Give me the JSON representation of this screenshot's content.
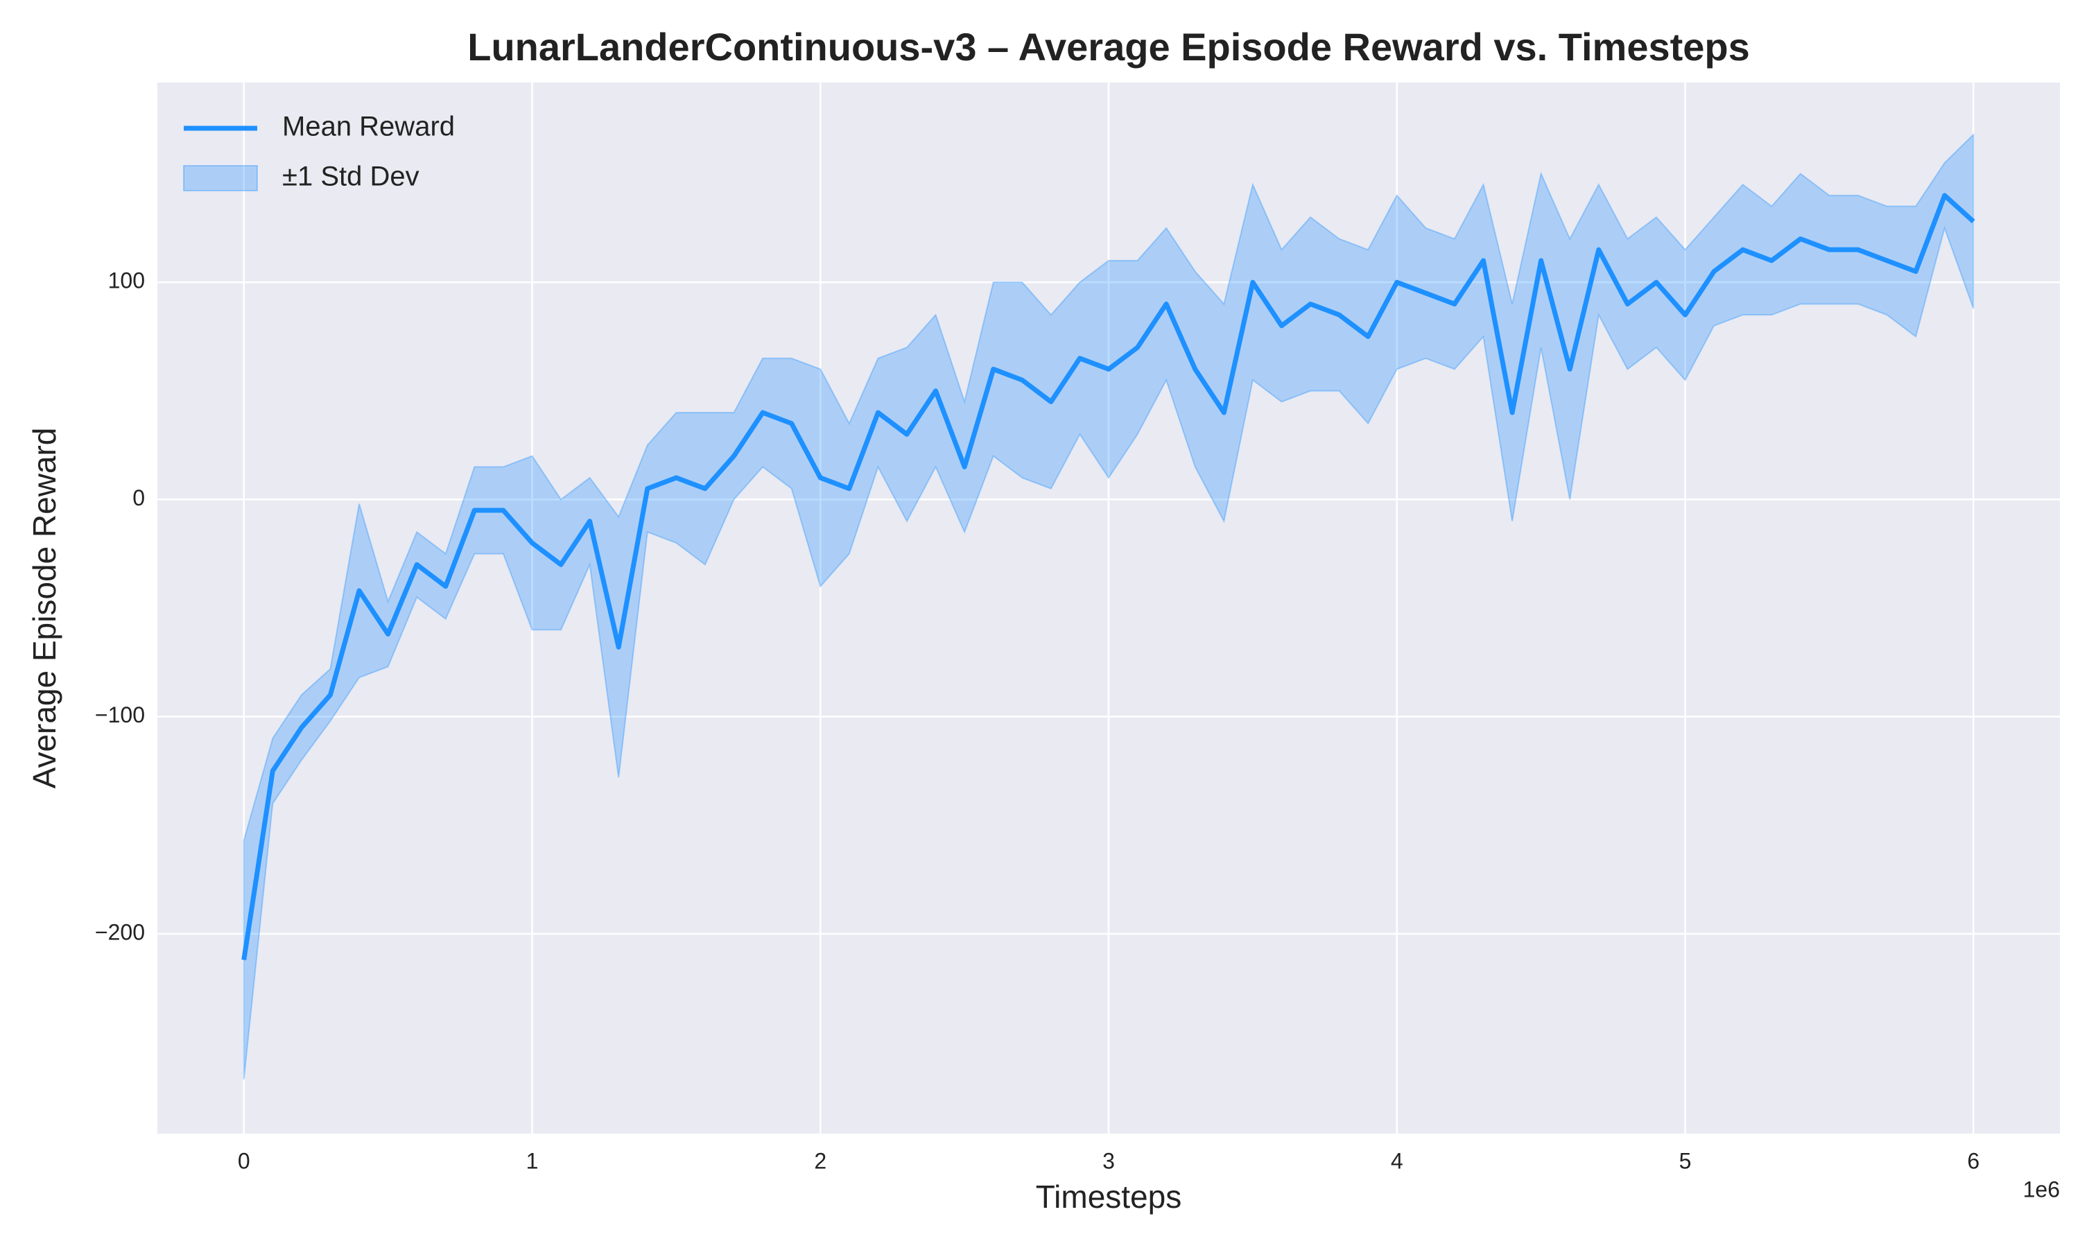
{
  "chart_data": {
    "type": "line",
    "title": "LunarLanderContinuous-v3 – Average Episode Reward vs. Timesteps",
    "x_label": "Timesteps",
    "y_label": "Average Episode Reward",
    "x_offset_label": "1e6",
    "x": [
      0,
      0.1,
      0.2,
      0.3,
      0.4,
      0.5,
      0.6,
      0.7,
      0.8,
      0.9,
      1.0,
      1.1,
      1.2,
      1.3,
      1.4,
      1.5,
      1.6,
      1.7,
      1.8,
      1.9,
      2.0,
      2.1,
      2.2,
      2.3,
      2.4,
      2.5,
      2.6,
      2.7,
      2.8,
      2.9,
      3.0,
      3.1,
      3.2,
      3.3,
      3.4,
      3.5,
      3.6,
      3.7,
      3.8,
      3.9,
      4.0,
      4.1,
      4.2,
      4.3,
      4.4,
      4.5,
      4.6,
      4.7,
      4.8,
      4.9,
      5.0,
      5.1,
      5.2,
      5.3,
      5.4,
      5.5,
      5.6,
      5.7,
      5.8,
      5.9,
      6.0
    ],
    "series": [
      {
        "name": "Mean Reward",
        "color": "#1e90ff",
        "values": [
          -212,
          -125,
          -105,
          -90,
          -42,
          -62,
          -30,
          -40,
          -5,
          -5,
          -20,
          -30,
          -10,
          -68,
          5,
          10,
          5,
          20,
          40,
          35,
          10,
          5,
          40,
          30,
          50,
          15,
          60,
          55,
          45,
          65,
          60,
          70,
          90,
          60,
          40,
          100,
          80,
          90,
          85,
          75,
          100,
          95,
          90,
          110,
          40,
          110,
          60,
          115,
          90,
          100,
          85,
          105,
          115,
          110,
          120,
          115,
          115,
          110,
          105,
          140,
          128
        ]
      },
      {
        "name": "±1 Std Dev",
        "color": "#1e90ff",
        "lower": [
          -267,
          -140,
          -120,
          -102,
          -82,
          -77,
          -45,
          -55,
          -25,
          -25,
          -60,
          -60,
          -30,
          -128,
          -15,
          -20,
          -30,
          0,
          15,
          5,
          -40,
          -25,
          15,
          -10,
          15,
          -15,
          20,
          10,
          5,
          30,
          10,
          30,
          55,
          15,
          -10,
          55,
          45,
          50,
          50,
          35,
          60,
          65,
          60,
          75,
          -10,
          70,
          0,
          85,
          60,
          70,
          55,
          80,
          85,
          85,
          90,
          90,
          90,
          85,
          75,
          125,
          88
        ],
        "upper": [
          -157,
          -110,
          -90,
          -78,
          -2,
          -47,
          -15,
          -25,
          15,
          15,
          20,
          0,
          10,
          -8,
          25,
          40,
          40,
          40,
          65,
          65,
          60,
          35,
          65,
          70,
          85,
          45,
          100,
          100,
          85,
          100,
          110,
          110,
          125,
          105,
          90,
          145,
          115,
          130,
          120,
          115,
          140,
          125,
          120,
          145,
          90,
          150,
          120,
          145,
          120,
          130,
          115,
          130,
          145,
          135,
          150,
          140,
          140,
          135,
          135,
          155,
          168
        ]
      }
    ],
    "xlim": [
      -0.3,
      6.3
    ],
    "ylim": [
      -292,
      192
    ],
    "xticks": [
      0,
      1,
      2,
      3,
      4,
      5,
      6
    ],
    "yticks": [
      {
        "value": -200,
        "label": "−200"
      },
      {
        "value": -100,
        "label": "−100"
      },
      0,
      100
    ],
    "grid": true,
    "legend": "upper left"
  }
}
